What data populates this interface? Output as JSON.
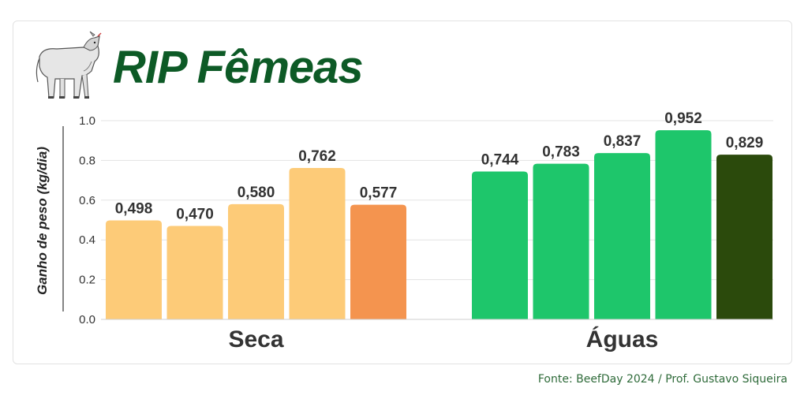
{
  "title": "RIP Fêmeas",
  "source": "Fonte: BeefDay 2024 / Prof. Gustavo Siqueira",
  "chart_data": {
    "type": "bar",
    "ylabel": "Ganho de peso (kg/dia)",
    "ylim": [
      0,
      1.0
    ],
    "yticks": [
      "0.0",
      "0.2",
      "0.4",
      "0.6",
      "0.8",
      "1.0"
    ],
    "grid": true,
    "groups": [
      {
        "label": "Seca",
        "bars": [
          {
            "value": 0.498,
            "label": "0,498",
            "color": "#fdcb78"
          },
          {
            "value": 0.47,
            "label": "0,470",
            "color": "#fdcb78"
          },
          {
            "value": 0.58,
            "label": "0,580",
            "color": "#fdcb78"
          },
          {
            "value": 0.762,
            "label": "0,762",
            "color": "#fdcb78"
          },
          {
            "value": 0.577,
            "label": "0,577",
            "color": "#f4944f"
          }
        ]
      },
      {
        "label": "Águas",
        "bars": [
          {
            "value": 0.744,
            "label": "0,744",
            "color": "#1ec66b"
          },
          {
            "value": 0.783,
            "label": "0,783",
            "color": "#1ec66b"
          },
          {
            "value": 0.837,
            "label": "0,837",
            "color": "#1ec66b"
          },
          {
            "value": 0.952,
            "label": "0,952",
            "color": "#1ec66b"
          },
          {
            "value": 0.829,
            "label": "0,829",
            "color": "#2b4a0c"
          }
        ]
      }
    ]
  },
  "colors": {
    "title": "#0d5a26",
    "source": "#2f6b3a"
  },
  "icons": {
    "logo": "cow-icon"
  }
}
